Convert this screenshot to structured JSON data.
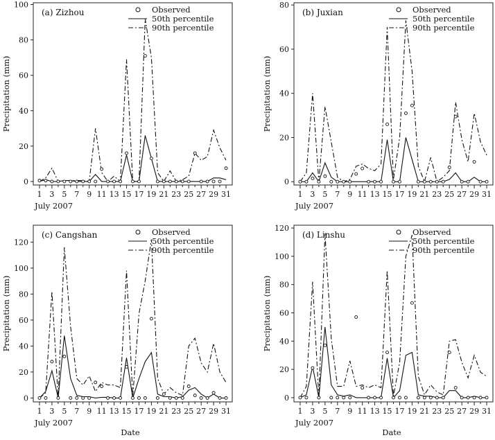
{
  "figure": {
    "shared_xlabel": "Date",
    "month_label": "July  2007"
  },
  "chart_data": [
    {
      "type": "line",
      "title": "(a)  Zizhou",
      "xlabel": "July  2007",
      "ylabel": "Precipitation  (mm)",
      "xlim": [
        0,
        32
      ],
      "ylim": [
        -2,
        101
      ],
      "x_ticks": [
        1,
        3,
        5,
        7,
        9,
        11,
        13,
        15,
        17,
        19,
        21,
        23,
        25,
        27,
        29,
        31
      ],
      "y_ticks": [
        0,
        20,
        40,
        60,
        80,
        100
      ],
      "legend": [
        "Observed",
        "50th  percentile",
        "90th  percentile"
      ],
      "observed": [
        0.5,
        0.5,
        0,
        0,
        0,
        0,
        0,
        0,
        0,
        0,
        7,
        0,
        0,
        0,
        16,
        0,
        0,
        71,
        13,
        0,
        0,
        0,
        0,
        0,
        0,
        16,
        0,
        0,
        0,
        0,
        7.5
      ],
      "p50": [
        0,
        1,
        0,
        0,
        0.5,
        0.5,
        0,
        0,
        0,
        4,
        0,
        0,
        0,
        0,
        15,
        0,
        0,
        26,
        13,
        0,
        0,
        0,
        0,
        0,
        0,
        0,
        0,
        0,
        2,
        2,
        1
      ],
      "p90": [
        0,
        2,
        7.5,
        0,
        0.5,
        0.5,
        0.5,
        0.5,
        0,
        30,
        5,
        0,
        3,
        0,
        69,
        0,
        0,
        92,
        70,
        5,
        0,
        6,
        0,
        1,
        3,
        16,
        12,
        14,
        29,
        19,
        12
      ]
    },
    {
      "type": "line",
      "title": "(b)  Juxian",
      "xlabel": "July  2007",
      "ylabel": "Precipitation  (mm)",
      "xlim": [
        0,
        32
      ],
      "ylim": [
        -1.5,
        81
      ],
      "x_ticks": [
        1,
        3,
        5,
        7,
        9,
        11,
        13,
        15,
        17,
        19,
        21,
        23,
        25,
        27,
        29,
        31
      ],
      "y_ticks": [
        0,
        20,
        40,
        60,
        80
      ],
      "legend": [
        "Observed",
        "50th  percentile",
        "90th  percentile"
      ],
      "observed": [
        0,
        0,
        1.5,
        0,
        2.5,
        0,
        0,
        0,
        0,
        3.5,
        6,
        0,
        0,
        0,
        26,
        0,
        0,
        31,
        34.5,
        0,
        0,
        0,
        0,
        0,
        6.5,
        29.5,
        0,
        0,
        9,
        0,
        0
      ],
      "p50": [
        0,
        0,
        4,
        0,
        8.5,
        2,
        0,
        0,
        0,
        0,
        0,
        0,
        0,
        0,
        19,
        0,
        0,
        20,
        10,
        0,
        0,
        0,
        0,
        0,
        1,
        4,
        0,
        0,
        2,
        0,
        0
      ],
      "p90": [
        0,
        4,
        40,
        0,
        34,
        18,
        2,
        0,
        1,
        7,
        8,
        6,
        5,
        8,
        70,
        1,
        20,
        73,
        50,
        7,
        0,
        11,
        0,
        2,
        5,
        36,
        19,
        9,
        31,
        18,
        12
      ]
    },
    {
      "type": "line",
      "title": "(c)  Cangshan",
      "xlabel": "July  2007",
      "ylabel": "Precipitation  (mm)",
      "xlim": [
        0,
        32
      ],
      "ylim": [
        -3,
        133
      ],
      "x_ticks": [
        1,
        3,
        5,
        7,
        9,
        11,
        13,
        15,
        17,
        19,
        21,
        23,
        25,
        27,
        29,
        31
      ],
      "y_ticks": [
        0,
        20,
        40,
        60,
        80,
        100,
        120
      ],
      "legend": [
        "Observed",
        "50th  percentile",
        "90th  percentile"
      ],
      "observed": [
        0,
        0,
        28,
        0,
        32,
        0,
        0,
        0,
        0,
        12,
        9,
        0,
        0,
        0,
        24,
        0,
        0,
        0,
        61,
        0,
        3,
        0,
        0,
        0,
        9,
        2,
        0,
        0,
        4,
        0,
        0
      ],
      "p50": [
        0,
        5,
        21,
        0,
        48,
        15,
        2,
        1,
        1,
        0,
        0.5,
        0.5,
        0,
        0,
        31,
        0,
        15,
        28,
        35,
        3,
        1,
        1,
        0,
        1,
        6,
        8,
        3,
        0,
        3,
        0,
        0
      ],
      "p90": [
        0,
        4,
        82,
        0,
        116,
        55,
        15,
        10,
        17,
        5,
        12,
        10,
        10,
        8,
        98,
        1,
        65,
        90,
        122,
        15,
        3,
        8,
        4,
        2,
        40,
        46,
        27,
        20,
        42,
        20,
        12
      ]
    },
    {
      "type": "line",
      "title": "(d)  Linshu",
      "xlabel": "July  2007",
      "ylabel": "Precipitation  (mm)",
      "xlim": [
        0,
        32
      ],
      "ylim": [
        -3,
        122
      ],
      "x_ticks": [
        1,
        3,
        5,
        7,
        9,
        11,
        13,
        15,
        17,
        19,
        21,
        23,
        25,
        27,
        29,
        31
      ],
      "y_ticks": [
        0,
        20,
        40,
        60,
        80,
        100,
        120
      ],
      "legend": [
        "Observed",
        "50th  percentile",
        "90th  percentile"
      ],
      "observed": [
        0,
        0,
        21,
        0,
        37,
        0,
        0,
        0,
        0,
        57,
        7,
        0,
        0,
        0,
        32,
        0,
        0,
        0,
        67,
        0,
        0,
        0,
        0,
        0,
        32,
        7,
        0,
        0,
        0,
        0,
        0
      ],
      "p50": [
        0,
        2,
        22,
        0,
        50,
        9,
        2,
        1,
        2,
        0,
        0,
        0,
        0,
        0,
        28,
        0,
        5,
        30,
        32,
        2,
        1,
        1,
        0,
        0,
        5,
        5,
        0,
        0,
        1,
        0,
        0
      ],
      "p90": [
        0,
        8,
        82,
        0,
        116,
        42,
        8,
        8,
        26,
        8,
        9,
        7,
        9,
        7,
        90,
        1,
        25,
        100,
        115,
        15,
        2,
        9,
        4,
        2,
        40,
        41,
        25,
        14,
        30,
        18,
        15
      ]
    }
  ]
}
